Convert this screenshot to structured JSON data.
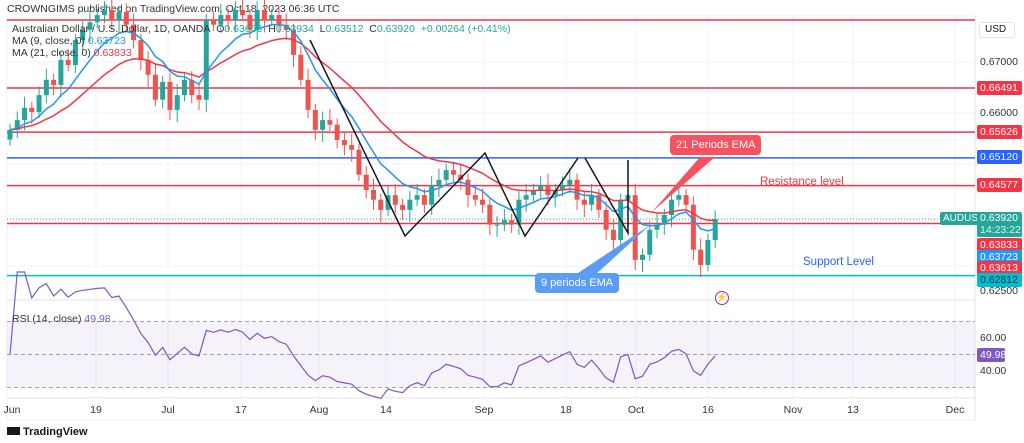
{
  "header": {
    "publisher_line": "CROWNGIMS published on TradingView.com, Oct 18, 2023 06:36 UTC"
  },
  "legend": {
    "symbol": "Australian Dollar / U.S. Dollar, 1D, OANDA",
    "o_label": "O",
    "o": "0.63656",
    "h_label": "H",
    "h": "0.63934",
    "l_label": "L",
    "l": "0.63512",
    "c_label": "C",
    "c": "0.63920",
    "change": "+0.00264 (+0.41%)",
    "ma9_label": "MA (9, close, 0)",
    "ma9": "0.63723",
    "ma21_label": "MA (21, close, 0)",
    "ma21": "0.63833",
    "rsi_label": "RSI (14, close)",
    "rsi": "49.98"
  },
  "price_axis": {
    "currency": "USD",
    "ticks": [
      "0.67000",
      "0.66000",
      "0.62500"
    ]
  },
  "levels": [
    {
      "value": "0.66491",
      "color": "#f23645"
    },
    {
      "value": "0.65626",
      "color": "#f23645"
    },
    {
      "value": "0.65120",
      "color": "#2962ff"
    },
    {
      "value": "0.64577",
      "color": "#f23645"
    },
    {
      "value": "0.63833",
      "color": "#f23645"
    },
    {
      "value": "0.62812",
      "color": "#00bcd4"
    }
  ],
  "tags": {
    "symbol": "AUDUSD",
    "last": "0.63920",
    "countdown": "14:23:22",
    "ma21": "0.63833",
    "ma9": "0.63723",
    "low_tag": "0.63613"
  },
  "rsi_axis": {
    "ticks": [
      "60.00",
      "40.00"
    ],
    "value": "49.98"
  },
  "time_axis": [
    "Jun",
    "19",
    "Jul",
    "17",
    "Aug",
    "14",
    "Sep",
    "18",
    "Oct",
    "16",
    "Nov",
    "13",
    "Dec"
  ],
  "annotations": {
    "ema21": "21 Periods EMA",
    "ema9": "9 periods EMA",
    "resistance": "Resistance level",
    "support": "Support Level"
  },
  "footer": {
    "brand": "TradingView"
  },
  "colors": {
    "up": "#26a69a",
    "down": "#ef5350",
    "ema9": "#2196f3",
    "ema21": "#f23645",
    "rsi": "#7e57c2"
  },
  "chart_data": {
    "type": "candlestick",
    "title": "Australian Dollar / U.S. Dollar, 1D, OANDA",
    "first_open": 0.6548,
    "closes": [
      0.6567,
      0.6586,
      0.661,
      0.6602,
      0.6635,
      0.6665,
      0.6655,
      0.6704,
      0.6694,
      0.6743,
      0.6763,
      0.6778,
      0.6792,
      0.6802,
      0.6782,
      0.6798,
      0.6773,
      0.6743,
      0.6704,
      0.6675,
      0.6626,
      0.6661,
      0.6606,
      0.6635,
      0.6665,
      0.6635,
      0.6626,
      0.6782,
      0.6773,
      0.6792,
      0.6782,
      0.6802,
      0.6792,
      0.6763,
      0.6802,
      0.6782,
      0.6792,
      0.6773,
      0.6763,
      0.6714,
      0.6665,
      0.6606,
      0.6567,
      0.6586,
      0.6577,
      0.6547,
      0.6537,
      0.6528,
      0.6479,
      0.6449,
      0.643,
      0.641,
      0.6439,
      0.642,
      0.641,
      0.643,
      0.6439,
      0.642,
      0.6459,
      0.6469,
      0.6488,
      0.6479,
      0.6469,
      0.6439,
      0.643,
      0.642,
      0.6381,
      0.6381,
      0.639,
      0.6381,
      0.643,
      0.6439,
      0.6449,
      0.6459,
      0.6439,
      0.6449,
      0.6459,
      0.6469,
      0.643,
      0.642,
      0.6439,
      0.641,
      0.6371,
      0.6351,
      0.643,
      0.6439,
      0.6312,
      0.6322,
      0.6371,
      0.6381,
      0.64,
      0.643,
      0.6439,
      0.642,
      0.6332,
      0.6302,
      0.6351,
      0.6392
    ],
    "indicators": [
      "EMA 9",
      "EMA 21",
      "RSI 14"
    ],
    "ylim": [
      0.62,
      0.68
    ],
    "rsi_levels": [
      70,
      60,
      40,
      30
    ]
  }
}
